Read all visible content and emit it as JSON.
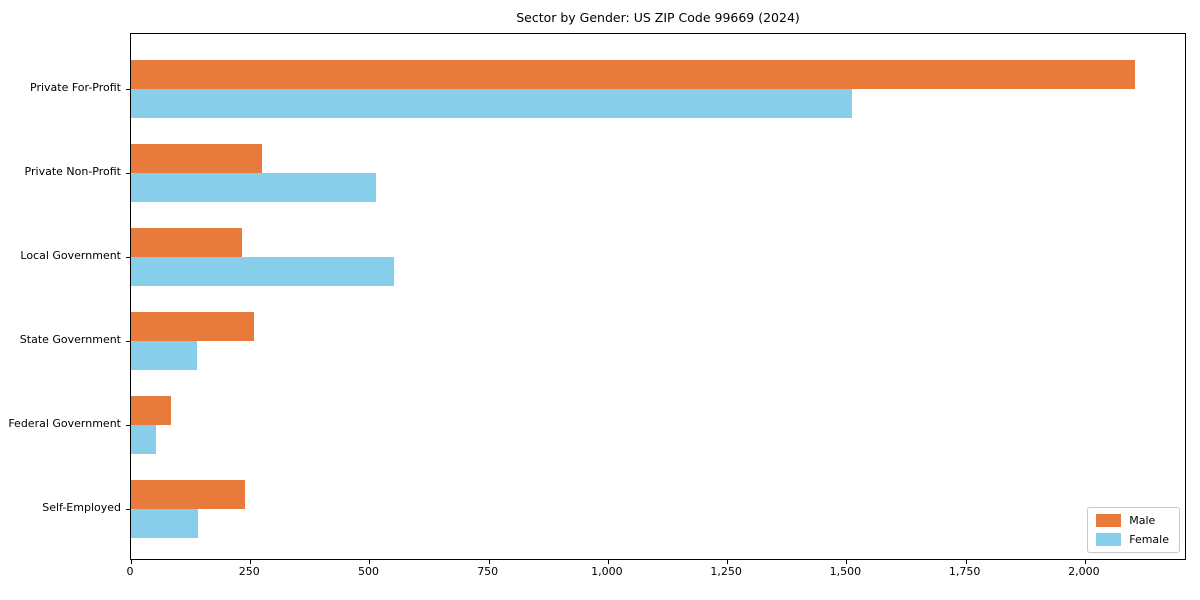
{
  "chart_data": {
    "type": "bar",
    "orientation": "horizontal",
    "title": "Sector by Gender: US ZIP Code 99669 (2024)",
    "categories": [
      "Private For-Profit",
      "Private Non-Profit",
      "Local Government",
      "State Government",
      "Federal Government",
      "Self-Employed"
    ],
    "series": [
      {
        "name": "Male",
        "color": "#e87a3c",
        "values": [
          2105,
          275,
          233,
          258,
          84,
          239
        ]
      },
      {
        "name": "Female",
        "color": "#87ceeb",
        "values": [
          1512,
          513,
          551,
          138,
          52,
          140
        ]
      }
    ],
    "xlabel": "",
    "ylabel": "",
    "xlim": [
      0,
      2210
    ],
    "x_ticks": [
      0,
      250,
      500,
      750,
      1000,
      1250,
      1500,
      1750,
      2000
    ],
    "x_tick_labels": [
      "0",
      "250",
      "500",
      "750",
      "1,000",
      "1,250",
      "1,500",
      "1,750",
      "2,000"
    ],
    "grid": false,
    "legend": {
      "position": "lower right",
      "labels": [
        "Male",
        "Female"
      ]
    },
    "colors": {
      "axis": "#000000",
      "legend_border": "#c9c9c9",
      "background": "#ffffff"
    }
  }
}
